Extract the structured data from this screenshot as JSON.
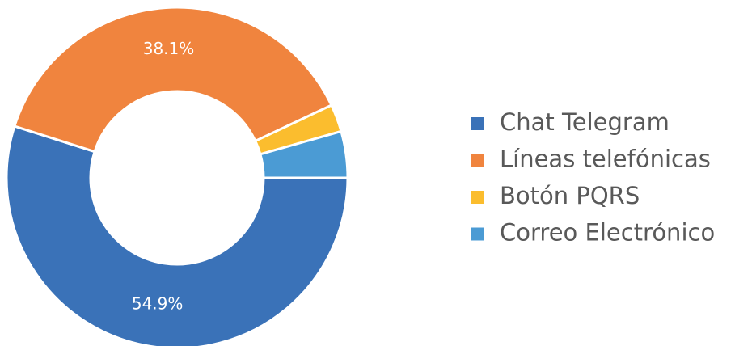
{
  "chart_data": {
    "type": "donut",
    "categories": [
      "Chat Telegram",
      "Líneas telefónicas",
      "Botón PQRS",
      "Correo Electrónico"
    ],
    "values": [
      54.9,
      38.1,
      2.6,
      4.4
    ],
    "value_labels": [
      "54.9%",
      "38.1%",
      null,
      null
    ],
    "colors": [
      "#3a72b8",
      "#f0843e",
      "#fbbd2e",
      "#4b9bd4"
    ],
    "legend": "right"
  }
}
